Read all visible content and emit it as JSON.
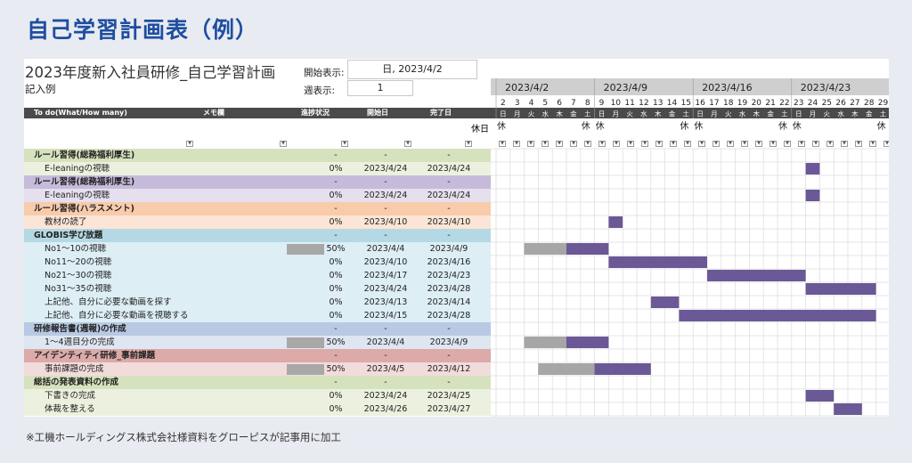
{
  "page_title": "自己学習計画表（例）",
  "sheet": {
    "title": "2023年度新入社員研修_自己学習計画",
    "subtitle": "記入例",
    "start_label": "開始表示:",
    "start_value": "日, 2023/4/2",
    "week_label": "週表示:",
    "week_value": "1"
  },
  "columns": {
    "todo": "To do(What/How many)",
    "memo": "メモ欄",
    "progress": "進捗状況",
    "start": "開始日",
    "end": "完了日"
  },
  "holiday_label": "休日",
  "holiday_mark": "休",
  "weeks": [
    "2023/4/2",
    "2023/4/9",
    "2023/4/16",
    "2023/4/23"
  ],
  "days": [
    "2",
    "3",
    "4",
    "5",
    "6",
    "7",
    "8",
    "9",
    "10",
    "11",
    "12",
    "13",
    "14",
    "15",
    "16",
    "17",
    "18",
    "19",
    "20",
    "21",
    "22",
    "23",
    "24",
    "25",
    "26",
    "27",
    "28",
    "29"
  ],
  "weekdays": [
    "日",
    "月",
    "火",
    "水",
    "木",
    "金",
    "土",
    "日",
    "月",
    "火",
    "水",
    "木",
    "金",
    "土",
    "日",
    "月",
    "火",
    "水",
    "木",
    "金",
    "土",
    "日",
    "月",
    "火",
    "水",
    "木",
    "金",
    "土"
  ],
  "holidays": [
    true,
    false,
    false,
    false,
    false,
    false,
    true,
    true,
    false,
    false,
    false,
    false,
    false,
    true,
    true,
    false,
    false,
    false,
    false,
    false,
    true,
    true,
    false,
    false,
    false,
    false,
    false,
    true
  ],
  "rows": [
    {
      "type": "cat",
      "name": "ルール習得(総務福利厚生)",
      "progress": "-",
      "start": "-",
      "end": "-",
      "color": "#d6e2bd"
    },
    {
      "type": "task",
      "name": "E-leaningの視聴",
      "progress": "0%",
      "start": "2023/4/24",
      "end": "2023/4/24",
      "color": "#ebf1de",
      "plan": [
        22,
        22
      ],
      "done": null
    },
    {
      "type": "cat",
      "name": "ルール習得(総務福利厚生)",
      "progress": "-",
      "start": "-",
      "end": "-",
      "color": "#c7bbdb"
    },
    {
      "type": "task",
      "name": "E-leaningの視聴",
      "progress": "0%",
      "start": "2023/4/24",
      "end": "2023/4/24",
      "color": "#e5dfee",
      "plan": [
        22,
        22
      ],
      "done": null
    },
    {
      "type": "cat",
      "name": "ルール習得(ハラスメント)",
      "progress": "-",
      "start": "-",
      "end": "-",
      "color": "#f8cbab"
    },
    {
      "type": "task",
      "name": "教材の読了",
      "progress": "0%",
      "start": "2023/4/10",
      "end": "2023/4/10",
      "color": "#fce5d6",
      "plan": [
        8,
        8
      ],
      "done": null
    },
    {
      "type": "cat",
      "name": "GLOBIS学び放題",
      "progress": "-",
      "start": "-",
      "end": "-",
      "color": "#b4d9e4"
    },
    {
      "type": "task",
      "name": "No1～10の視聴",
      "progress": "50%",
      "start": "2023/4/4",
      "end": "2023/4/9",
      "color": "#ddeef4",
      "plan": [
        2,
        7
      ],
      "done": [
        2,
        4
      ],
      "pbar": 0.5
    },
    {
      "type": "task",
      "name": "No11～20の視聴",
      "progress": "0%",
      "start": "2023/4/10",
      "end": "2023/4/16",
      "color": "#ddeef4",
      "plan": [
        8,
        14
      ],
      "done": null
    },
    {
      "type": "task",
      "name": "No21～30の視聴",
      "progress": "0%",
      "start": "2023/4/17",
      "end": "2023/4/23",
      "color": "#ddeef4",
      "plan": [
        15,
        21
      ],
      "done": null
    },
    {
      "type": "task",
      "name": "No31～35の視聴",
      "progress": "0%",
      "start": "2023/4/24",
      "end": "2023/4/28",
      "color": "#ddeef4",
      "plan": [
        22,
        26
      ],
      "done": null
    },
    {
      "type": "task",
      "name": "上記他、自分に必要な動画を探す",
      "progress": "0%",
      "start": "2023/4/13",
      "end": "2023/4/14",
      "color": "#ddeef4",
      "plan": [
        11,
        12
      ],
      "done": null
    },
    {
      "type": "task",
      "name": "上記他、自分に必要な動画を視聴する",
      "progress": "0%",
      "start": "2023/4/15",
      "end": "2023/4/28",
      "color": "#ddeef4",
      "plan": [
        13,
        26
      ],
      "done": null
    },
    {
      "type": "cat",
      "name": "研修報告書(週報)の作成",
      "progress": "-",
      "start": "-",
      "end": "-",
      "color": "#b8c9e3"
    },
    {
      "type": "task",
      "name": "1～4週目分の完成",
      "progress": "50%",
      "start": "2023/4/4",
      "end": "2023/4/9",
      "color": "#dee6f1",
      "plan": [
        2,
        7
      ],
      "done": [
        2,
        4
      ],
      "pbar": 0.5
    },
    {
      "type": "cat",
      "name": "アイデンティティ研修_事前課題",
      "progress": "-",
      "start": "-",
      "end": "-",
      "color": "#dcaaa9"
    },
    {
      "type": "task",
      "name": "事前課題の完成",
      "progress": "50%",
      "start": "2023/4/5",
      "end": "2023/4/12",
      "color": "#f2dcdb",
      "plan": [
        3,
        10
      ],
      "done": [
        3,
        6
      ],
      "pbar": 0.5
    },
    {
      "type": "cat",
      "name": "総括の発表資料の作成",
      "progress": "-",
      "start": "-",
      "end": "-",
      "color": "#d6e2bd"
    },
    {
      "type": "task",
      "name": "下書きの完成",
      "progress": "0%",
      "start": "2023/4/24",
      "end": "2023/4/25",
      "color": "#ebf1de",
      "plan": [
        22,
        23
      ],
      "done": null
    },
    {
      "type": "task",
      "name": "体裁を整える",
      "progress": "0%",
      "start": "2023/4/26",
      "end": "2023/4/27",
      "color": "#ebf1de",
      "plan": [
        24,
        25
      ],
      "done": null
    }
  ],
  "colors": {
    "plan": "#6b5896",
    "done": "#a6a6a6",
    "progress_bar": "#a8a8a8",
    "header": "#4a4a4a",
    "week_header": "#cfcfcf"
  },
  "footnote": "※工機ホールディングス株式会社様資料をグローピスが記事用に加工"
}
